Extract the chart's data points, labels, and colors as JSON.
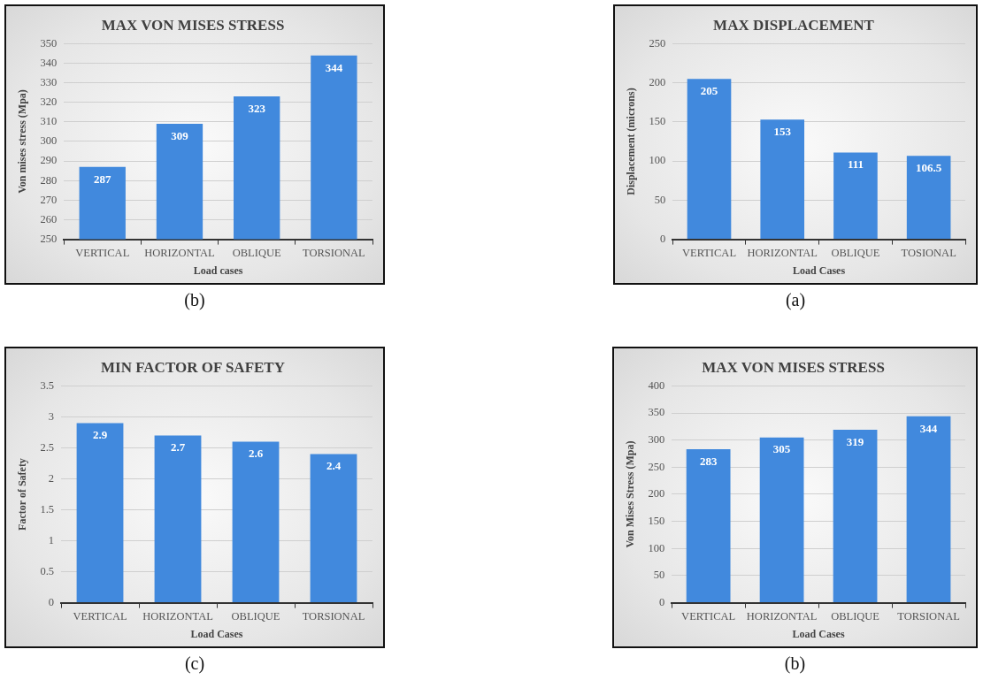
{
  "chart_data": [
    {
      "type": "bar",
      "title": "MAX VON MISES STRESS",
      "xlabel": "Load cases",
      "ylabel": "Von mises stress (Mpa)",
      "categories": [
        "VERTICAL",
        "HORIZONTAL",
        "OBLIQUE",
        "TORSIONAL"
      ],
      "values": [
        287,
        309,
        323,
        344
      ],
      "color": "#4189dd",
      "ylim": [
        250,
        350
      ],
      "yticks": [
        250,
        260,
        270,
        280,
        290,
        300,
        310,
        320,
        330,
        340,
        350
      ],
      "grid": "y",
      "data_labels": true,
      "annotations": [
        "(b)"
      ]
    },
    {
      "type": "bar",
      "title": "MAX DISPLACEMENT",
      "xlabel": "Load Cases",
      "ylabel": "Displacement (microns)",
      "categories": [
        "VERTICAL",
        "HORIZONTAL",
        "OBLIQUE",
        "TOSIONAL"
      ],
      "values": [
        205,
        153,
        111,
        106.5
      ],
      "color": "#4189dd",
      "ylim": [
        0,
        250
      ],
      "yticks": [
        0,
        50,
        100,
        150,
        200,
        250
      ],
      "grid": "y",
      "data_labels": true,
      "annotations": [
        "(a)"
      ]
    },
    {
      "type": "bar",
      "title": "MIN FACTOR OF SAFETY",
      "xlabel": "Load Cases",
      "ylabel": "Factor of Safety",
      "categories": [
        "VERTICAL",
        "HORIZONTAL",
        "OBLIQUE",
        "TORSIONAL"
      ],
      "values": [
        2.9,
        2.7,
        2.6,
        2.4
      ],
      "color": "#4189dd",
      "ylim": [
        0,
        3.5
      ],
      "yticks": [
        0,
        0.5,
        1,
        1.5,
        2,
        2.5,
        3,
        3.5
      ],
      "grid": "y",
      "data_labels": true,
      "annotations": [
        "(c)"
      ]
    },
    {
      "type": "bar",
      "title": "MAX VON MISES STRESS",
      "xlabel": "Load Cases",
      "ylabel": "Von Mises Stress (Mpa)",
      "categories": [
        "VERTICAL",
        "HORIZONTAL",
        "OBLIQUE",
        "TORSIONAL"
      ],
      "values": [
        283,
        305,
        319,
        344
      ],
      "color": "#4189dd",
      "ylim": [
        0,
        400
      ],
      "yticks": [
        0,
        50,
        100,
        150,
        200,
        250,
        300,
        350,
        400
      ],
      "grid": "y",
      "data_labels": true,
      "annotations": [
        "(b)"
      ]
    }
  ]
}
